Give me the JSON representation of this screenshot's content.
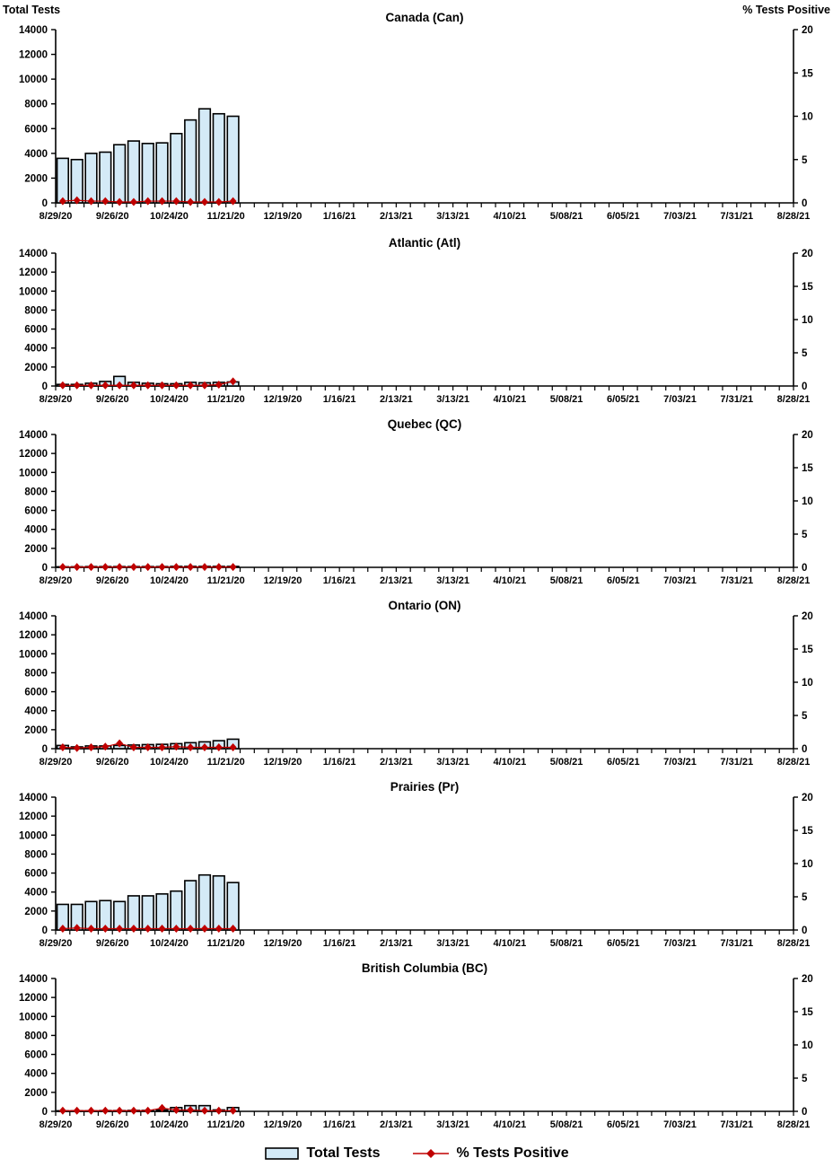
{
  "chart_data": {
    "type": "bar",
    "description": "Weekly laboratory tests: six stacked region panels, light blue bars (Total Tests, left axis) with red diamond series (% Tests Positive, right axis)",
    "left_axis": {
      "label": "Total Tests",
      "min": 0,
      "max": 14000,
      "tick_step": 2000
    },
    "right_axis": {
      "label": "% Tests Positive",
      "min": 0,
      "max": 20,
      "tick_step": 5
    },
    "x_labels": [
      "8/29/20",
      "9/26/20",
      "10/24/20",
      "11/21/20",
      "12/19/20",
      "1/16/21",
      "2/13/21",
      "3/13/21",
      "4/10/21",
      "5/08/21",
      "6/05/21",
      "7/03/21",
      "7/31/21",
      "8/28/21"
    ],
    "weeks_per_label": 4,
    "total_weeks_on_axis": 52,
    "data_weeks": [
      "8/29/20",
      "9/05/20",
      "9/12/20",
      "9/19/20",
      "9/26/20",
      "10/03/20",
      "10/10/20",
      "10/17/20",
      "10/24/20",
      "10/31/20",
      "11/07/20",
      "11/14/20",
      "11/21/20"
    ],
    "colors": {
      "bar_fill": "#D4EAF7",
      "bar_border": "#000000",
      "pct_color": "#C00000",
      "axis_color": "#000000"
    },
    "legend": [
      {
        "label": "Total Tests",
        "type": "bar"
      },
      {
        "label": "% Tests Positive",
        "type": "line-diamond"
      }
    ],
    "panels": [
      {
        "id": "canada",
        "title": "Canada (Can)",
        "total_tests": [
          3600,
          3500,
          4000,
          4100,
          4700,
          5000,
          4800,
          4850,
          5600,
          6700,
          7600,
          7200,
          7000
        ],
        "pct_positive": [
          0.2,
          0.3,
          0.2,
          0.2,
          0.1,
          0.1,
          0.2,
          0.2,
          0.2,
          0.1,
          0.1,
          0.1,
          0.2
        ]
      },
      {
        "id": "atlantic",
        "title": "Atlantic (Atl)",
        "total_tests": [
          170,
          170,
          290,
          480,
          1010,
          385,
          290,
          240,
          240,
          385,
          340,
          385,
          430
        ],
        "pct_positive": [
          0.1,
          0.1,
          0.1,
          0.1,
          0.1,
          0.1,
          0.1,
          0.1,
          0.1,
          0.1,
          0.1,
          0.2,
          0.7
        ]
      },
      {
        "id": "quebec",
        "title": "Quebec (QC)",
        "total_tests": [
          60,
          60,
          80,
          80,
          80,
          80,
          80,
          80,
          100,
          100,
          100,
          100,
          100
        ],
        "pct_positive": [
          0.05,
          0.05,
          0.05,
          0.05,
          0.05,
          0.05,
          0.05,
          0.05,
          0.05,
          0.05,
          0.05,
          0.05,
          0.05
        ]
      },
      {
        "id": "ontario",
        "title": "Ontario (ON)",
        "total_tests": [
          340,
          190,
          290,
          290,
          340,
          385,
          430,
          460,
          530,
          630,
          720,
          840,
          1000
        ],
        "pct_positive": [
          0.2,
          0.1,
          0.2,
          0.3,
          0.8,
          0.2,
          0.2,
          0.2,
          0.3,
          0.2,
          0.2,
          0.2,
          0.2
        ]
      },
      {
        "id": "prairies",
        "title": "Prairies (Pr)",
        "total_tests": [
          2700,
          2700,
          3000,
          3100,
          3000,
          3600,
          3600,
          3800,
          4100,
          5200,
          5800,
          5700,
          5000
        ],
        "pct_positive": [
          0.2,
          0.3,
          0.2,
          0.2,
          0.2,
          0.2,
          0.2,
          0.2,
          0.2,
          0.2,
          0.2,
          0.2,
          0.2
        ]
      },
      {
        "id": "british-columbia",
        "title": "British Columbia (BC)",
        "total_tests": [
          60,
          60,
          60,
          80,
          80,
          100,
          100,
          150,
          400,
          600,
          600,
          150,
          400
        ],
        "pct_positive": [
          0.1,
          0.1,
          0.1,
          0.1,
          0.1,
          0.1,
          0.1,
          0.5,
          0.2,
          0.2,
          0.1,
          0.1,
          0.1
        ]
      }
    ]
  }
}
